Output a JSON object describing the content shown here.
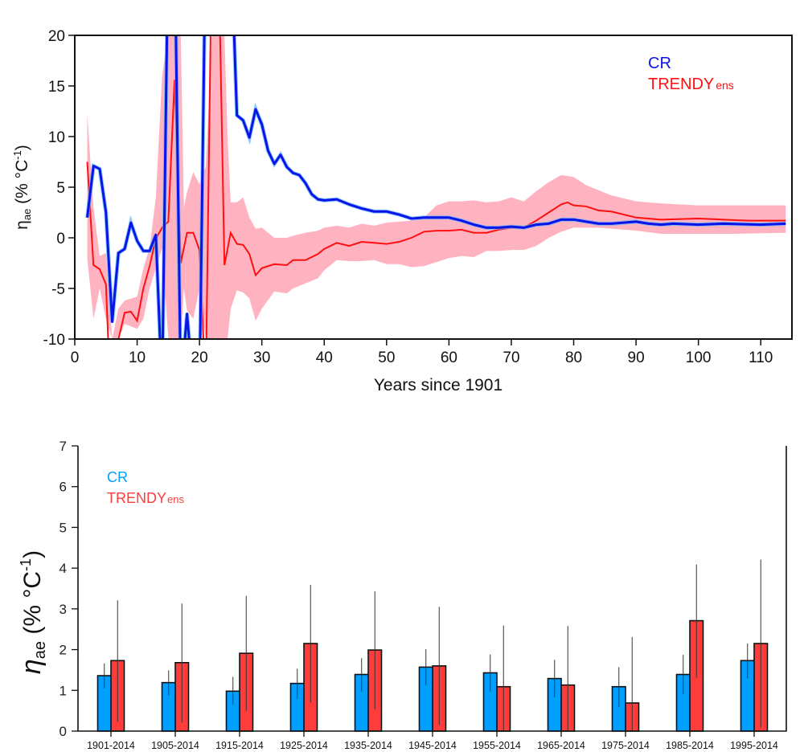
{
  "chart_data": [
    {
      "type": "line",
      "xlabel": "Years since 1901",
      "ylabel": {
        "symbol": "η",
        "sub": "ae",
        "unit_open": " (% °C",
        "unit_sup": "-1",
        "unit_close": ")"
      },
      "xlim": [
        0,
        115
      ],
      "ylim": [
        -10,
        20
      ],
      "xticks": [
        0,
        10,
        20,
        30,
        40,
        50,
        60,
        70,
        80,
        90,
        100,
        110
      ],
      "yticks": [
        -10,
        -5,
        0,
        5,
        10,
        15,
        20
      ],
      "legend": {
        "placement": "top-right",
        "entries": [
          {
            "name": "CR",
            "sub": ""
          },
          {
            "name": "TRENDY",
            "sub": "ens"
          }
        ]
      },
      "colors": {
        "cr": "#0a14e6",
        "cr_band": "#5ab4ff",
        "trendy": "#ff1010",
        "trendy_band": "#ffb3c1"
      },
      "series": [
        {
          "name": "CR",
          "x": [
            2,
            3,
            4,
            5,
            6,
            7,
            8,
            9,
            10,
            11,
            12,
            13,
            14,
            15,
            16,
            17,
            18,
            19,
            20,
            21,
            25,
            26,
            27,
            28,
            29,
            30,
            31,
            32,
            33,
            34,
            35,
            36,
            37,
            38,
            39,
            40,
            42,
            44,
            46,
            48,
            50,
            52,
            54,
            56,
            58,
            60,
            62,
            64,
            66,
            68,
            70,
            72,
            74,
            76,
            78,
            80,
            82,
            84,
            86,
            88,
            90,
            92,
            94,
            96,
            100,
            104,
            110,
            114
          ],
          "y": [
            2,
            7.1,
            6.8,
            2.5,
            -8.3,
            -1.5,
            -1.1,
            1.5,
            -0.3,
            -1.3,
            -1.3,
            0.3,
            -15,
            30,
            30,
            -15,
            -7.5,
            -15,
            -15,
            30,
            30,
            12.1,
            11.6,
            9.9,
            12.7,
            11.2,
            8.6,
            7.3,
            8.2,
            7.0,
            6.4,
            6.2,
            5.4,
            4.3,
            3.8,
            3.7,
            3.8,
            3.3,
            2.9,
            2.6,
            2.6,
            2.3,
            1.9,
            2.0,
            2.0,
            2.0,
            1.7,
            1.3,
            1.0,
            1.0,
            1.1,
            1.0,
            1.3,
            1.4,
            1.8,
            1.8,
            1.6,
            1.4,
            1.4,
            1.5,
            1.6,
            1.4,
            1.3,
            1.4,
            1.3,
            1.4,
            1.3,
            1.4
          ]
        },
        {
          "name": "TRENDYens",
          "x": [
            2,
            3,
            4,
            5,
            6,
            7,
            8,
            9,
            10,
            11,
            12,
            13,
            14,
            15,
            16,
            17,
            18,
            19,
            20,
            21,
            22,
            23,
            24,
            25,
            26,
            27,
            28,
            29,
            30,
            32,
            34,
            35,
            37,
            39,
            40,
            42,
            44,
            46,
            48,
            50,
            52,
            54,
            56,
            58,
            60,
            62,
            64,
            66,
            68,
            70,
            72,
            74,
            76,
            78,
            79,
            80,
            82,
            84,
            86,
            88,
            90,
            94,
            100,
            104,
            108,
            114
          ],
          "y": [
            7.5,
            -2.7,
            -3.1,
            -4.6,
            -20,
            -10,
            -7.4,
            -7.3,
            -8.2,
            -5,
            -2.8,
            -0.1,
            1.0,
            1.6,
            15.6,
            -2.5,
            0.5,
            0.5,
            -1.2,
            -15,
            30,
            30,
            -2.7,
            0.5,
            -0.6,
            -0.7,
            -1.6,
            -3.7,
            -3.0,
            -2.6,
            -2.7,
            -2.2,
            -2.2,
            -1.6,
            -1.1,
            -0.5,
            -0.8,
            -0.4,
            -0.5,
            -0.6,
            -0.4,
            0,
            0.6,
            0.7,
            0.7,
            0.8,
            0.5,
            0.5,
            0.8,
            1.0,
            1.0,
            1.7,
            2.5,
            3.3,
            3.5,
            3.2,
            3.1,
            2.7,
            2.6,
            2.3,
            2.0,
            1.8,
            1.9,
            1.8,
            1.7,
            1.7
          ],
          "band_x": [
            2,
            3,
            4,
            5,
            6,
            7,
            8,
            10,
            11,
            12,
            13,
            14,
            15,
            17,
            17.5,
            18,
            19,
            20,
            21,
            22,
            24,
            24.5,
            25,
            26,
            27,
            28,
            29,
            30,
            32,
            34,
            35,
            37,
            39,
            40,
            42,
            44,
            46,
            48,
            50,
            52,
            54,
            56,
            58,
            60,
            62,
            64,
            66,
            68,
            70,
            72,
            74,
            76,
            78,
            80,
            82,
            84,
            86,
            88,
            90,
            94,
            100,
            106,
            114
          ],
          "band_upper": [
            12.3,
            3,
            -1.8,
            -1.5,
            -10,
            -7,
            -6.2,
            -5.8,
            -3,
            -1,
            4,
            16,
            20,
            20,
            3,
            4.5,
            6.5,
            5.3,
            7,
            20,
            20,
            10,
            3.5,
            3.5,
            4,
            2,
            0.9,
            1,
            0,
            0,
            0.2,
            0.5,
            0.7,
            1,
            1.2,
            1,
            1.4,
            1.2,
            1.5,
            1.6,
            1.7,
            2.0,
            3.2,
            3.6,
            3.6,
            3.7,
            3.5,
            3.6,
            4,
            3.6,
            4.6,
            5.5,
            6.2,
            6.0,
            5.2,
            4.7,
            4.2,
            3.9,
            3.6,
            3.4,
            3.2,
            3.2,
            3.2
          ],
          "band_lower": [
            -2,
            -8,
            -5,
            -8,
            -10,
            -10,
            -8.5,
            -9,
            -8,
            -5,
            -3,
            -1,
            -10,
            -10,
            -5,
            -7.2,
            -8,
            -5,
            -10,
            -10,
            -10,
            -10,
            -7,
            -5.2,
            -5.4,
            -6,
            -8.2,
            -7,
            -5.3,
            -5.5,
            -5,
            -4.5,
            -4,
            -3.2,
            -2.2,
            -2.3,
            -2.3,
            -2.2,
            -2.6,
            -2.6,
            -2.9,
            -2.8,
            -2.4,
            -2.0,
            -1.8,
            -1.9,
            -1.3,
            -1.3,
            -1.2,
            -1.2,
            -0.8,
            0,
            0.6,
            1.0,
            1.0,
            1.0,
            0.9,
            0.8,
            0.7,
            0.4,
            0.4,
            0.4,
            0.5
          ]
        }
      ]
    },
    {
      "type": "bar",
      "ylabel": {
        "symbol": "η",
        "sub": "ae",
        "unit_open": " (% °C",
        "unit_sup": "-1",
        "unit_close": ")"
      },
      "ylim": [
        0,
        7
      ],
      "yticks": [
        0,
        1,
        2,
        3,
        4,
        5,
        6,
        7
      ],
      "legend": {
        "placement": "top-left",
        "entries": [
          {
            "name": "CR",
            "sub": ""
          },
          {
            "name": "TRENDY",
            "sub": "ens"
          }
        ]
      },
      "colors": {
        "cr": "#00a0ff",
        "trendy": "#ff3c3c"
      },
      "categories": [
        "1901-2014",
        "1905-2014",
        "1915-2014",
        "1925-2014",
        "1935-2014",
        "1945-2014",
        "1955-2014",
        "1965-2014",
        "1975-2014",
        "1985-2014",
        "1995-2014"
      ],
      "series": [
        {
          "name": "CR",
          "values": [
            1.36,
            1.19,
            0.98,
            1.17,
            1.39,
            1.57,
            1.43,
            1.29,
            1.09,
            1.39,
            1.73
          ],
          "err_high": [
            1.66,
            1.49,
            1.33,
            1.53,
            1.79,
            2.01,
            1.88,
            1.75,
            1.57,
            1.87,
            2.15
          ],
          "err_low": [
            1.05,
            0.87,
            0.64,
            0.79,
            0.97,
            1.12,
            0.97,
            0.83,
            0.59,
            0.9,
            1.29
          ]
        },
        {
          "name": "TRENDYens",
          "values": [
            1.73,
            1.68,
            1.91,
            2.15,
            1.99,
            1.6,
            1.09,
            1.13,
            0.69,
            2.71,
            2.15
          ],
          "err_high": [
            3.21,
            3.13,
            3.32,
            3.59,
            3.43,
            3.05,
            2.59,
            2.58,
            2.31,
            4.09,
            4.21
          ],
          "err_low": [
            0.23,
            0.21,
            0.5,
            0.7,
            0.53,
            0.15,
            0,
            0,
            0,
            1.31,
            0.09
          ]
        }
      ]
    }
  ]
}
